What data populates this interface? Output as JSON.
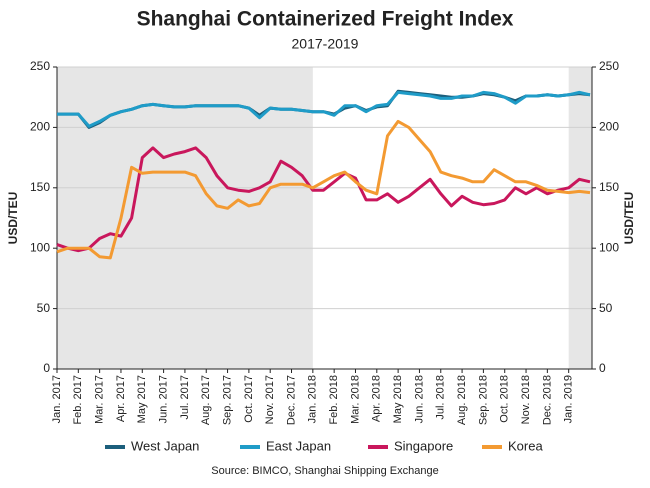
{
  "chart_data": {
    "type": "line",
    "title": "Shanghai Containerized Freight Index",
    "subtitle": "2017-2019",
    "y_label": "USD/TEU",
    "y2_label": "USD/TEU",
    "source": "Source: BIMCO, Shanghai Shipping Exchange",
    "categories": [
      "Jan. 2017",
      null,
      "Feb. 2017",
      null,
      "Mar. 2017",
      null,
      "Apr. 2017",
      null,
      "May 2017",
      null,
      "Jun. 2017",
      null,
      "Jul. 2017",
      null,
      "Aug. 2017",
      null,
      "Sep. 2017",
      null,
      "Oct. 2017",
      null,
      "Nov. 2017",
      null,
      "Dec. 2017",
      null,
      "Jan. 2018",
      null,
      "Feb. 2018",
      null,
      "Mar. 2018",
      null,
      "Apr. 2018",
      null,
      "May 2018",
      null,
      "Jun. 2018",
      null,
      "Jul. 2018",
      null,
      "Aug. 2018",
      null,
      "Sep. 2018",
      null,
      "Oct. 2018",
      null,
      "Nov. 2018",
      null,
      "Dec. 2018",
      null,
      "Jan. 2019",
      null,
      null
    ],
    "series": [
      {
        "name": "West Japan",
        "color": "#1c5f7c",
        "values": [
          211,
          211,
          211,
          200,
          204,
          210,
          213,
          215,
          218,
          219,
          218,
          217,
          217,
          218,
          218,
          218,
          218,
          218,
          216,
          210,
          216,
          215,
          215,
          214,
          213,
          213,
          211,
          216,
          218,
          214,
          217,
          218,
          230,
          229,
          228,
          227,
          226,
          225,
          225,
          226,
          228,
          227,
          225,
          222,
          226,
          226,
          227,
          226,
          227,
          228,
          227
        ]
      },
      {
        "name": "East Japan",
        "color": "#1f9cc8",
        "values": [
          211,
          211,
          211,
          201,
          205,
          210,
          213,
          215,
          218,
          219,
          218,
          217,
          217,
          218,
          218,
          218,
          218,
          218,
          216,
          208,
          216,
          215,
          215,
          214,
          213,
          213,
          210,
          218,
          218,
          213,
          218,
          219,
          229,
          228,
          227,
          226,
          224,
          224,
          226,
          226,
          229,
          228,
          225,
          220,
          226,
          226,
          227,
          226,
          227,
          229,
          227
        ]
      },
      {
        "name": "Singapore",
        "color": "#c9175c",
        "values": [
          103,
          100,
          98,
          100,
          108,
          112,
          110,
          125,
          175,
          183,
          175,
          178,
          180,
          183,
          175,
          160,
          150,
          148,
          147,
          150,
          155,
          172,
          167,
          160,
          148,
          148,
          155,
          162,
          158,
          140,
          140,
          145,
          138,
          143,
          150,
          157,
          145,
          135,
          143,
          138,
          136,
          137,
          140,
          150,
          145,
          150,
          145,
          148,
          150,
          157,
          155
        ]
      },
      {
        "name": "Korea",
        "color": "#f39a32",
        "values": [
          97,
          100,
          100,
          100,
          93,
          92,
          125,
          167,
          162,
          163,
          163,
          163,
          163,
          160,
          145,
          135,
          133,
          140,
          135,
          137,
          150,
          153,
          153,
          153,
          150,
          155,
          160,
          163,
          155,
          148,
          145,
          193,
          205,
          200,
          190,
          180,
          163,
          160,
          158,
          155,
          155,
          165,
          160,
          155,
          155,
          152,
          148,
          147,
          146,
          147,
          146
        ]
      }
    ],
    "ylim": [
      0,
      250
    ],
    "yticks": [
      0,
      50,
      100,
      150,
      200,
      250
    ],
    "y2lim": [
      0,
      250
    ],
    "y2ticks": [
      0,
      50,
      100,
      150,
      200,
      250
    ],
    "grid": true,
    "legend": "bottom"
  }
}
